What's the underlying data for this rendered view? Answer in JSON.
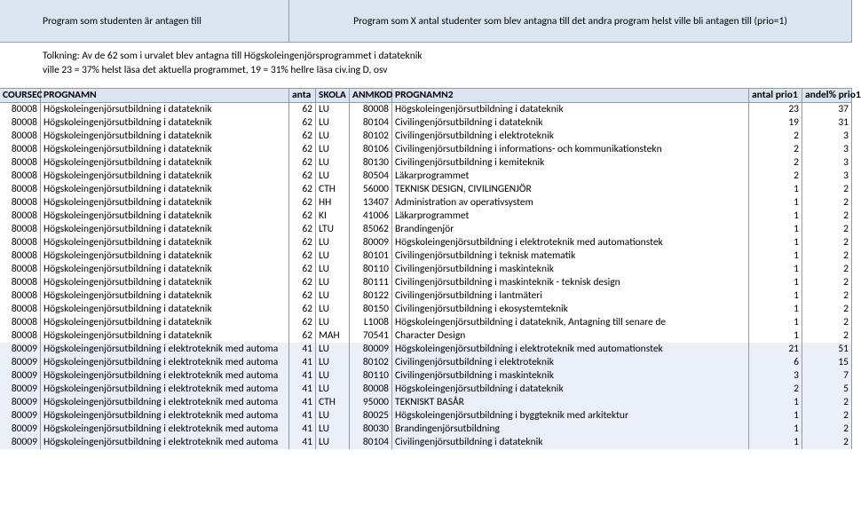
{
  "header": {
    "left": "Program som studenten är antagen till",
    "right": "Program som X antal studenter som blev antagna till det andra program helst ville bli antagen till (prio=1)"
  },
  "tolkning": {
    "line1": "Tolkning: Av de 62 som i urvalet blev antagna till Högskoleingenjörsprogrammet i datateknik",
    "line2": "ville 23 = 37% helst läsa det aktuella programmet,  19 = 31% hellre läsa civ.ing D, osv"
  },
  "cols": {
    "code": "COURSEC",
    "prog": "PROGNAMN",
    "antal": "anta",
    "skola": "SKOLA",
    "anm": "ANMKOD",
    "prog2": "PROGNAMN2",
    "p1": "antal prio1",
    "p2": "andel% prio1"
  },
  "rows": [
    {
      "s": 0,
      "code": "80008",
      "prog": "Högskoleingenjörsutbildning i datateknik",
      "a": "62",
      "sk": "LU",
      "anm": "80008",
      "p2": "Högskoleingenjörsutbildning i datateknik",
      "v1": "23",
      "v2": "37"
    },
    {
      "s": 0,
      "code": "80008",
      "prog": "Högskoleingenjörsutbildning i datateknik",
      "a": "62",
      "sk": "LU",
      "anm": "80104",
      "p2": "Civilingenjörsutbildning i datateknik",
      "v1": "19",
      "v2": "31"
    },
    {
      "s": 0,
      "code": "80008",
      "prog": "Högskoleingenjörsutbildning i datateknik",
      "a": "62",
      "sk": "LU",
      "anm": "80102",
      "p2": "Civilingenjörsutbildning i elektroteknik",
      "v1": "2",
      "v2": "3"
    },
    {
      "s": 0,
      "code": "80008",
      "prog": "Högskoleingenjörsutbildning i datateknik",
      "a": "62",
      "sk": "LU",
      "anm": "80106",
      "p2": "Civilingenjörsutbildning i informations- och kommunikationstekn",
      "v1": "2",
      "v2": "3"
    },
    {
      "s": 0,
      "code": "80008",
      "prog": "Högskoleingenjörsutbildning i datateknik",
      "a": "62",
      "sk": "LU",
      "anm": "80130",
      "p2": "Civilingenjörsutbildning i kemiteknik",
      "v1": "2",
      "v2": "3"
    },
    {
      "s": 0,
      "code": "80008",
      "prog": "Högskoleingenjörsutbildning i datateknik",
      "a": "62",
      "sk": "LU",
      "anm": "80504",
      "p2": "Läkarprogrammet",
      "v1": "2",
      "v2": "3"
    },
    {
      "s": 0,
      "code": "80008",
      "prog": "Högskoleingenjörsutbildning i datateknik",
      "a": "62",
      "sk": "CTH",
      "anm": "56000",
      "p2": "TEKNISK DESIGN, CIVILINGENJÖR",
      "v1": "1",
      "v2": "2"
    },
    {
      "s": 0,
      "code": "80008",
      "prog": "Högskoleingenjörsutbildning i datateknik",
      "a": "62",
      "sk": "HH",
      "anm": "13407",
      "p2": "Administration av operativsystem",
      "v1": "1",
      "v2": "2"
    },
    {
      "s": 0,
      "code": "80008",
      "prog": "Högskoleingenjörsutbildning i datateknik",
      "a": "62",
      "sk": "KI",
      "anm": "41006",
      "p2": "Läkarprogrammet",
      "v1": "1",
      "v2": "2"
    },
    {
      "s": 0,
      "code": "80008",
      "prog": "Högskoleingenjörsutbildning i datateknik",
      "a": "62",
      "sk": "LTU",
      "anm": "85062",
      "p2": "Brandingenjör",
      "v1": "1",
      "v2": "2"
    },
    {
      "s": 0,
      "code": "80008",
      "prog": "Högskoleingenjörsutbildning i datateknik",
      "a": "62",
      "sk": "LU",
      "anm": "80009",
      "p2": "Högskoleingenjörsutbildning i elektroteknik med automationstek",
      "v1": "1",
      "v2": "2"
    },
    {
      "s": 0,
      "code": "80008",
      "prog": "Högskoleingenjörsutbildning i datateknik",
      "a": "62",
      "sk": "LU",
      "anm": "80101",
      "p2": "Civilingenjörsutbildning i teknisk matematik",
      "v1": "1",
      "v2": "2"
    },
    {
      "s": 0,
      "code": "80008",
      "prog": "Högskoleingenjörsutbildning i datateknik",
      "a": "62",
      "sk": "LU",
      "anm": "80110",
      "p2": "Civilingenjörsutbildning i maskinteknik",
      "v1": "1",
      "v2": "2"
    },
    {
      "s": 0,
      "code": "80008",
      "prog": "Högskoleingenjörsutbildning i datateknik",
      "a": "62",
      "sk": "LU",
      "anm": "80111",
      "p2": "Civilingenjörsutbildning i maskinteknik - teknisk design",
      "v1": "1",
      "v2": "2"
    },
    {
      "s": 0,
      "code": "80008",
      "prog": "Högskoleingenjörsutbildning i datateknik",
      "a": "62",
      "sk": "LU",
      "anm": "80122",
      "p2": "Civilingenjörsutbildning i lantmäteri",
      "v1": "1",
      "v2": "2"
    },
    {
      "s": 0,
      "code": "80008",
      "prog": "Högskoleingenjörsutbildning i datateknik",
      "a": "62",
      "sk": "LU",
      "anm": "80150",
      "p2": "Civilingenjörsutbildning i ekosystemteknik",
      "v1": "1",
      "v2": "2"
    },
    {
      "s": 0,
      "code": "80008",
      "prog": "Högskoleingenjörsutbildning i datateknik",
      "a": "62",
      "sk": "LU",
      "anm": "L1008",
      "p2": "Högskoleingenjörsutbildning i datateknik, Antagning till senare de",
      "v1": "1",
      "v2": "2"
    },
    {
      "s": 0,
      "code": "80008",
      "prog": "Högskoleingenjörsutbildning i datateknik",
      "a": "62",
      "sk": "MAH",
      "anm": "70541",
      "p2": "Character Design",
      "v1": "1",
      "v2": "2"
    },
    {
      "s": 1,
      "code": "80009",
      "prog": "Högskoleingenjörsutbildning i elektroteknik med automa",
      "a": "41",
      "sk": "LU",
      "anm": "80009",
      "p2": "Högskoleingenjörsutbildning i elektroteknik med automationstek",
      "v1": "21",
      "v2": "51"
    },
    {
      "s": 1,
      "code": "80009",
      "prog": "Högskoleingenjörsutbildning i elektroteknik med automa",
      "a": "41",
      "sk": "LU",
      "anm": "80102",
      "p2": "Civilingenjörsutbildning i elektroteknik",
      "v1": "6",
      "v2": "15"
    },
    {
      "s": 1,
      "code": "80009",
      "prog": "Högskoleingenjörsutbildning i elektroteknik med automa",
      "a": "41",
      "sk": "LU",
      "anm": "80110",
      "p2": "Civilingenjörsutbildning i maskinteknik",
      "v1": "3",
      "v2": "7"
    },
    {
      "s": 1,
      "code": "80009",
      "prog": "Högskoleingenjörsutbildning i elektroteknik med automa",
      "a": "41",
      "sk": "LU",
      "anm": "80008",
      "p2": "Högskoleingenjörsutbildning i datateknik",
      "v1": "2",
      "v2": "5"
    },
    {
      "s": 1,
      "code": "80009",
      "prog": "Högskoleingenjörsutbildning i elektroteknik med automa",
      "a": "41",
      "sk": "CTH",
      "anm": "95000",
      "p2": "TEKNISKT BASÅR",
      "v1": "1",
      "v2": "2"
    },
    {
      "s": 1,
      "code": "80009",
      "prog": "Högskoleingenjörsutbildning i elektroteknik med automa",
      "a": "41",
      "sk": "LU",
      "anm": "80025",
      "p2": "Högskoleingenjörsutbildning i byggteknik med arkitektur",
      "v1": "1",
      "v2": "2"
    },
    {
      "s": 1,
      "code": "80009",
      "prog": "Högskoleingenjörsutbildning i elektroteknik med automa",
      "a": "41",
      "sk": "LU",
      "anm": "80030",
      "p2": "Brandingenjörsutbildning",
      "v1": "1",
      "v2": "2"
    },
    {
      "s": 1,
      "code": "80009",
      "prog": "Högskoleingenjörsutbildning i elektroteknik med automa",
      "a": "41",
      "sk": "LU",
      "anm": "80104",
      "p2": "Civilingenjörsutbildning i datateknik",
      "v1": "1",
      "v2": "2"
    }
  ]
}
